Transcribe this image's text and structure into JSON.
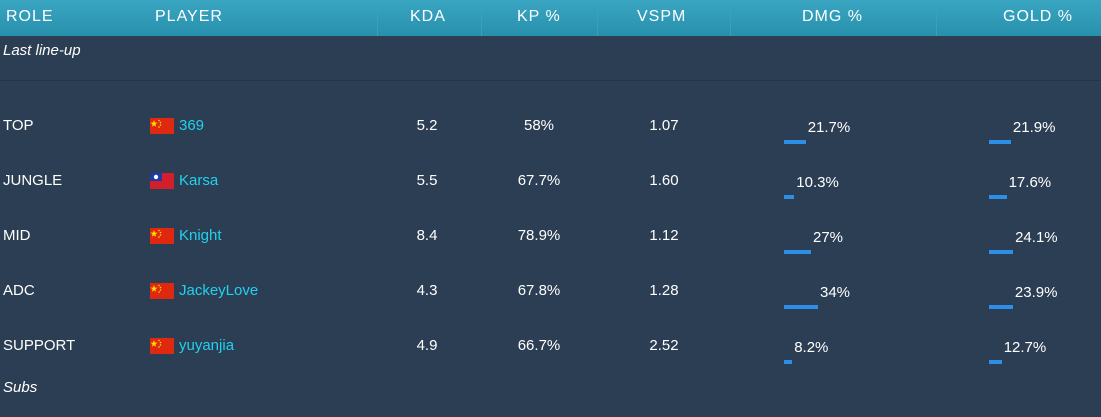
{
  "header": {
    "columns": [
      "ROLE",
      "PLAYER",
      "KDA",
      "KP %",
      "VSPM",
      "DMG %",
      "GOLD %"
    ]
  },
  "sections": {
    "lineup": "Last line-up",
    "subs": "Subs"
  },
  "rows": [
    {
      "role": "TOP",
      "flag": "china-flag-icon",
      "player": "369",
      "kda": "5.2",
      "kp": "58%",
      "vspm": "1.07",
      "dmg": "21.7%",
      "dmg_value": 21.7,
      "gold": "21.9%",
      "gold_value": 21.9
    },
    {
      "role": "JUNGLE",
      "flag": "taiwan-flag-icon",
      "player": "Karsa",
      "kda": "5.5",
      "kp": "67.7%",
      "vspm": "1.60",
      "dmg": "10.3%",
      "dmg_value": 10.3,
      "gold": "17.6%",
      "gold_value": 17.6
    },
    {
      "role": "MID",
      "flag": "china-flag-icon",
      "player": "Knight",
      "kda": "8.4",
      "kp": "78.9%",
      "vspm": "1.12",
      "dmg": "27%",
      "dmg_value": 27,
      "gold": "24.1%",
      "gold_value": 24.1
    },
    {
      "role": "ADC",
      "flag": "china-flag-icon",
      "player": "JackeyLove",
      "kda": "4.3",
      "kp": "67.8%",
      "vspm": "1.28",
      "dmg": "34%",
      "dmg_value": 34,
      "gold": "23.9%",
      "gold_value": 23.9
    },
    {
      "role": "SUPPORT",
      "flag": "china-flag-icon",
      "player": "yuyanjia",
      "kda": "4.9",
      "kp": "66.7%",
      "vspm": "2.52",
      "dmg": "8.2%",
      "dmg_value": 8.2,
      "gold": "12.7%",
      "gold_value": 12.7
    }
  ],
  "colors": {
    "header": "#2f9cb9",
    "background": "#2c3e53",
    "player_link": "#21d1ee",
    "bar": "#2d8fe6"
  }
}
